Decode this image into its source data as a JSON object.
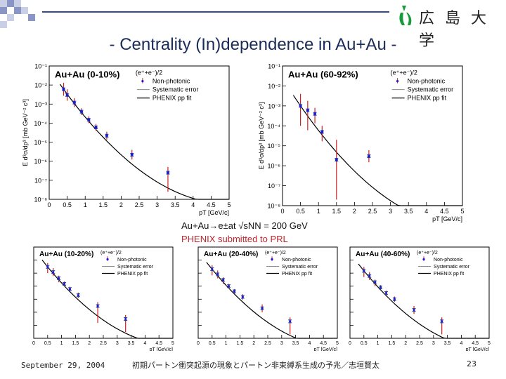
{
  "header": {
    "title": "- Centrality (In)dependence in Au+Au -",
    "logo_text": "広 島 大 学",
    "logo_icon": "hiroshima-university-leaf-icon"
  },
  "caption": {
    "line1": "Au+Au→e±at √sNN = 200 GeV",
    "line2": "PHENIX submitted to PRL",
    "line2_color": "#c0272d"
  },
  "footer": {
    "date": "September 29, 2004",
    "title": "初期パートン衝突起源の現象とパートン非束縛系生成の予兆／志垣賢太",
    "page": "23"
  },
  "chart_data": [
    {
      "type": "scatter",
      "title": "Au+Au (0-10%)",
      "legend_header": "(e⁺+e⁻)/2",
      "legend": [
        "Non-photonic",
        "Systematic error",
        "PHENIX pp fit"
      ],
      "xlabel": "pT [GeV/c]",
      "ylabel": "E d³σ/dp³ [mb GeV⁻² c³]",
      "xlim": [
        0,
        5
      ],
      "ylim_log10": [
        -8,
        -1
      ],
      "x_ticks": [
        "0",
        "0.5",
        "1",
        "1.5",
        "2",
        "2.5",
        "3",
        "3.5",
        "4",
        "4.5",
        "5"
      ],
      "y_ticks": [
        "10⁻⁸",
        "10⁻⁷",
        "10⁻⁶",
        "10⁻⁵",
        "10⁻⁴",
        "10⁻³",
        "10⁻²",
        "10⁻¹"
      ],
      "points": {
        "x": [
          0.4,
          0.5,
          0.7,
          0.9,
          1.1,
          1.3,
          1.6,
          2.3,
          3.3
        ],
        "y": [
          0.006,
          0.003,
          0.0012,
          0.0004,
          0.00015,
          6e-05,
          2.2e-05,
          2.2e-06,
          2.5e-07
        ],
        "err_low_factor": [
          2.2,
          2,
          1.7,
          1.5,
          1.5,
          1.5,
          1.6,
          1.8,
          10
        ],
        "err_high_factor": [
          2.2,
          2,
          1.7,
          1.5,
          1.5,
          1.5,
          1.6,
          1.8,
          2
        ]
      }
    },
    {
      "type": "scatter",
      "title": "Au+Au (60-92%)",
      "legend_header": "(e⁺+e⁻)/2",
      "legend": [
        "Non-photonic",
        "Systematic error",
        "PHENIX pp fit"
      ],
      "xlabel": "pT [GeV/c]",
      "ylabel": "E d³σ/dp³ [mb GeV⁻² c³]",
      "xlim": [
        0,
        5
      ],
      "ylim_log10": [
        -8,
        -1
      ],
      "x_ticks": [
        "0",
        "0.5",
        "1",
        "1.5",
        "2",
        "2.5",
        "3",
        "3.5",
        "4",
        "4.5",
        "5"
      ],
      "y_ticks": [
        "10⁻⁸",
        "10⁻⁷",
        "10⁻⁶",
        "10⁻⁵",
        "10⁻⁴",
        "10⁻³",
        "10⁻²",
        "10⁻¹"
      ],
      "points": {
        "x": [
          0.5,
          0.7,
          0.9,
          1.1,
          1.5,
          2.4
        ],
        "y": [
          0.001,
          0.0006,
          0.0004,
          5e-05,
          2e-06,
          3e-06
        ],
        "err_low_factor": [
          10,
          10,
          3,
          3,
          100,
          2
        ],
        "err_high_factor": [
          4,
          3,
          2,
          2,
          10,
          2
        ]
      }
    },
    {
      "type": "scatter",
      "title": "Au+Au (10-20%)",
      "legend_header": "(e⁺+e⁻)/2",
      "legend": [
        "Non-photonic",
        "Systematic error",
        "PHENIX pp fit"
      ],
      "xlabel": "pT [GeV/c]",
      "xlim": [
        0,
        5
      ],
      "ylim_log10": [
        -8,
        -1
      ],
      "x_ticks": [
        "0",
        "0.5",
        "1",
        "1.5",
        "2",
        "2.5",
        "3",
        "3.5",
        "4",
        "4.5",
        "5"
      ],
      "points": {
        "x": [
          0.5,
          0.7,
          0.9,
          1.1,
          1.3,
          1.6,
          2.3,
          3.3
        ],
        "y": [
          0.003,
          0.0012,
          0.0004,
          0.00015,
          6e-05,
          2e-05,
          3e-06,
          3e-07
        ],
        "err_low_factor": [
          3,
          2,
          2,
          1.5,
          1.5,
          1.6,
          20,
          10
        ],
        "err_high_factor": [
          2,
          2,
          1.6,
          1.5,
          1.5,
          1.6,
          2,
          2
        ]
      }
    },
    {
      "type": "scatter",
      "title": "Au+Au (20-40%)",
      "legend_header": "(e⁺+e⁻)/2",
      "legend": [
        "Non-photonic",
        "Systematic error",
        "PHENIX pp fit"
      ],
      "xlabel": "pT [GeV/c]",
      "xlim": [
        0,
        5
      ],
      "ylim_log10": [
        -8,
        -1
      ],
      "x_ticks": [
        "0",
        "0.5",
        "1",
        "1.5",
        "2",
        "2.5",
        "3",
        "3.5",
        "4",
        "4.5",
        "5"
      ],
      "points": {
        "x": [
          0.5,
          0.7,
          0.9,
          1.1,
          1.3,
          1.6,
          2.3,
          3.3
        ],
        "y": [
          0.002,
          0.0008,
          0.0003,
          0.0001,
          4e-05,
          1.5e-05,
          2e-06,
          2e-07
        ],
        "err_low_factor": [
          3,
          2,
          2,
          1.5,
          1.5,
          1.6,
          2,
          10
        ],
        "err_high_factor": [
          2,
          2,
          1.6,
          1.5,
          1.5,
          1.6,
          2,
          2
        ]
      }
    },
    {
      "type": "scatter",
      "title": "Au+Au (40-60%)",
      "legend_header": "(e⁺+e⁻)/2",
      "legend": [
        "Non-photonic",
        "Systematic error",
        "PHENIX pp fit"
      ],
      "xlabel": "pT [GeV/c]",
      "xlim": [
        0,
        5
      ],
      "ylim_log10": [
        -8,
        -1
      ],
      "x_ticks": [
        "0",
        "0.5",
        "1",
        "1.5",
        "2",
        "2.5",
        "3",
        "3.5",
        "4",
        "4.5",
        "5"
      ],
      "points": {
        "x": [
          0.5,
          0.7,
          0.9,
          1.1,
          1.3,
          1.6,
          2.3,
          3.3
        ],
        "y": [
          0.0015,
          0.0006,
          0.0002,
          8e-05,
          3e-05,
          1e-05,
          1.5e-06,
          2e-07
        ],
        "err_low_factor": [
          3,
          2,
          2,
          1.5,
          1.5,
          1.6,
          2,
          10
        ],
        "err_high_factor": [
          2,
          2,
          1.6,
          1.5,
          1.5,
          1.6,
          2,
          2
        ]
      }
    }
  ],
  "colors": {
    "data": "#1b1bd0",
    "error": "#d02020",
    "systematic": "#1a3fa0",
    "fit": "#000000",
    "title": "#1b2c5a"
  }
}
